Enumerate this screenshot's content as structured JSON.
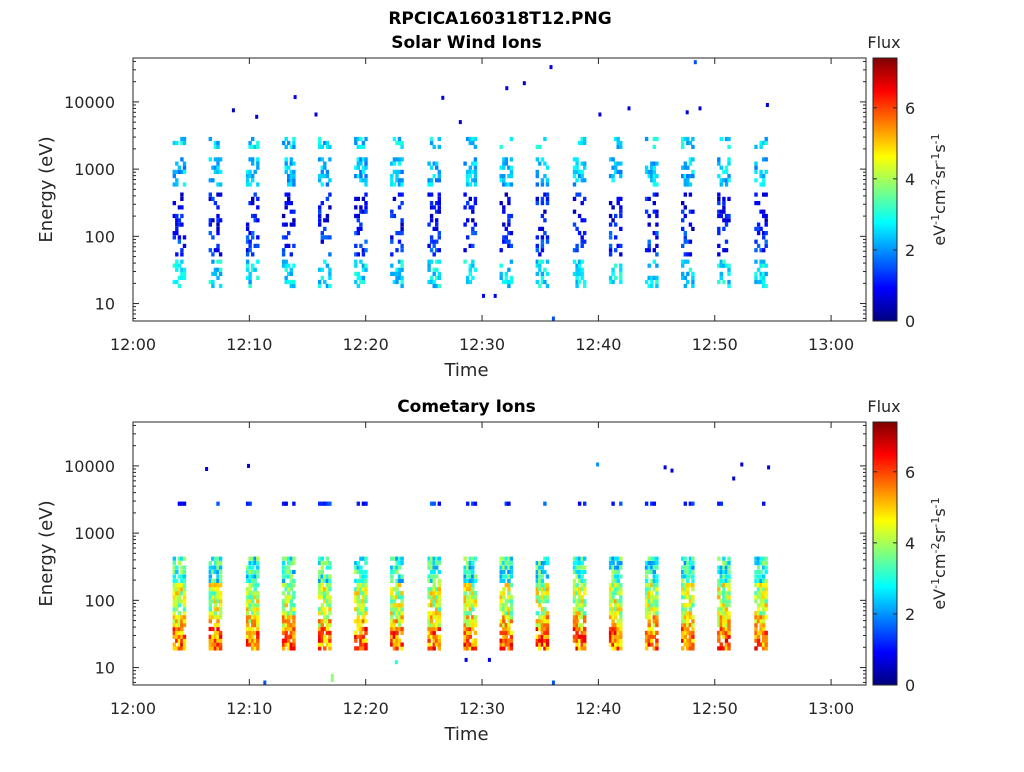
{
  "figure": {
    "title": "RPCICA160318T12.PNG"
  },
  "colors": {
    "colormap": [
      "#00007f",
      "#0000ff",
      "#007fff",
      "#00ffff",
      "#7fff7f",
      "#ffff00",
      "#ff7f00",
      "#ff0000",
      "#7f0000"
    ]
  },
  "chart_data": [
    {
      "type": "heatmap",
      "title": "Solar Wind Ions",
      "xlabel": "Time",
      "ylabel": "Energy (eV)",
      "x_ticks": [
        "12:00",
        "12:10",
        "12:20",
        "12:30",
        "12:40",
        "12:50",
        "13:00"
      ],
      "y_ticks": [
        "10",
        "100",
        "1000",
        "10000"
      ],
      "xlim": [
        "12:00",
        "13:03"
      ],
      "ylim": [
        5.5,
        45000
      ],
      "y_scale": "log",
      "colorbar": {
        "title": "Flux",
        "label": "eV-1cm-2sr-1s-1",
        "ticks": [
          "0",
          "2",
          "4",
          "6"
        ],
        "range": [
          0,
          7.4
        ]
      },
      "scan_start_minutes": [
        3.4,
        6.5,
        9.7,
        12.8,
        15.9,
        19.0,
        22.1,
        25.3,
        28.4,
        31.5,
        34.6,
        37.8,
        40.9,
        44.0,
        47.1,
        50.2,
        53.4
      ],
      "scan_duration_minutes": 1.1,
      "bands": [
        {
          "e_min": 17,
          "e_max": 45,
          "flux": 2.6
        },
        {
          "e_min": 50,
          "e_max": 120,
          "flux": 1.2
        },
        {
          "e_min": 120,
          "e_max": 450,
          "flux": 0.9
        },
        {
          "e_min": 550,
          "e_max": 1500,
          "flux": 2.3
        },
        {
          "e_min": 2000,
          "e_max": 3000,
          "flux": 2.5
        }
      ],
      "sparse_points": [
        {
          "t": 8.5,
          "e": 7500,
          "flux": 0.6
        },
        {
          "t": 10.5,
          "e": 6000,
          "flux": 0.6
        },
        {
          "t": 13.8,
          "e": 11800,
          "flux": 0.7
        },
        {
          "t": 15.6,
          "e": 6500,
          "flux": 0.6
        },
        {
          "t": 26.5,
          "e": 11500,
          "flux": 0.7
        },
        {
          "t": 28.0,
          "e": 5000,
          "flux": 0.6
        },
        {
          "t": 32.0,
          "e": 16000,
          "flux": 0.7
        },
        {
          "t": 33.5,
          "e": 19000,
          "flux": 0.6
        },
        {
          "t": 35.8,
          "e": 33000,
          "flux": 0.7
        },
        {
          "t": 40.0,
          "e": 6500,
          "flux": 0.6
        },
        {
          "t": 42.5,
          "e": 8000,
          "flux": 0.6
        },
        {
          "t": 47.5,
          "e": 7000,
          "flux": 0.6
        },
        {
          "t": 48.2,
          "e": 39000,
          "flux": 1.5
        },
        {
          "t": 48.6,
          "e": 8000,
          "flux": 0.6
        },
        {
          "t": 54.4,
          "e": 9000,
          "flux": 0.6
        },
        {
          "t": 30.0,
          "e": 13,
          "flux": 0.8
        },
        {
          "t": 31.0,
          "e": 13,
          "flux": 0.8
        },
        {
          "t": 36.0,
          "e": 6,
          "flux": 1.5
        }
      ]
    },
    {
      "type": "heatmap",
      "title": "Cometary Ions",
      "xlabel": "Time",
      "ylabel": "Energy (eV)",
      "x_ticks": [
        "12:00",
        "12:10",
        "12:20",
        "12:30",
        "12:40",
        "12:50",
        "13:00"
      ],
      "y_ticks": [
        "10",
        "100",
        "1000",
        "10000"
      ],
      "xlim": [
        "12:00",
        "13:03"
      ],
      "ylim": [
        5.5,
        45000
      ],
      "y_scale": "log",
      "colorbar": {
        "title": "Flux",
        "label": "eV-1cm-2sr-1s-1",
        "ticks": [
          "0",
          "2",
          "4",
          "6"
        ],
        "range": [
          0,
          7.4
        ]
      },
      "scan_start_minutes": [
        3.4,
        6.5,
        9.7,
        12.8,
        15.9,
        19.0,
        22.1,
        25.3,
        28.4,
        31.5,
        34.6,
        37.8,
        40.9,
        44.0,
        47.1,
        50.2,
        53.4
      ],
      "scan_duration_minutes": 1.1,
      "bands": [
        {
          "e_min": 18,
          "e_max": 40,
          "flux": 5.6
        },
        {
          "e_min": 40,
          "e_max": 60,
          "flux": 4.8
        },
        {
          "e_min": 60,
          "e_max": 180,
          "flux": 4.2
        },
        {
          "e_min": 180,
          "e_max": 450,
          "flux": 3.0
        },
        {
          "e_min": 2500,
          "e_max": 3000,
          "flux": 1.3
        }
      ],
      "sparse_points": [
        {
          "t": 6.2,
          "e": 9000,
          "flux": 0.6
        },
        {
          "t": 9.8,
          "e": 10000,
          "flux": 0.6
        },
        {
          "t": 39.8,
          "e": 10500,
          "flux": 2.0
        },
        {
          "t": 45.6,
          "e": 9500,
          "flux": 0.6
        },
        {
          "t": 46.2,
          "e": 8500,
          "flux": 0.6
        },
        {
          "t": 51.5,
          "e": 6500,
          "flux": 0.6
        },
        {
          "t": 52.2,
          "e": 10500,
          "flux": 0.6
        },
        {
          "t": 54.5,
          "e": 9500,
          "flux": 0.6
        },
        {
          "t": 17.0,
          "e": 7.5,
          "flux": 3.8
        },
        {
          "t": 17.0,
          "e": 6.5,
          "flux": 3.8
        },
        {
          "t": 22.5,
          "e": 12,
          "flux": 3.0
        },
        {
          "t": 28.5,
          "e": 13,
          "flux": 0.8
        },
        {
          "t": 30.5,
          "e": 13,
          "flux": 0.8
        },
        {
          "t": 11.2,
          "e": 6,
          "flux": 1.5
        },
        {
          "t": 36.0,
          "e": 6,
          "flux": 1.5
        }
      ]
    }
  ]
}
